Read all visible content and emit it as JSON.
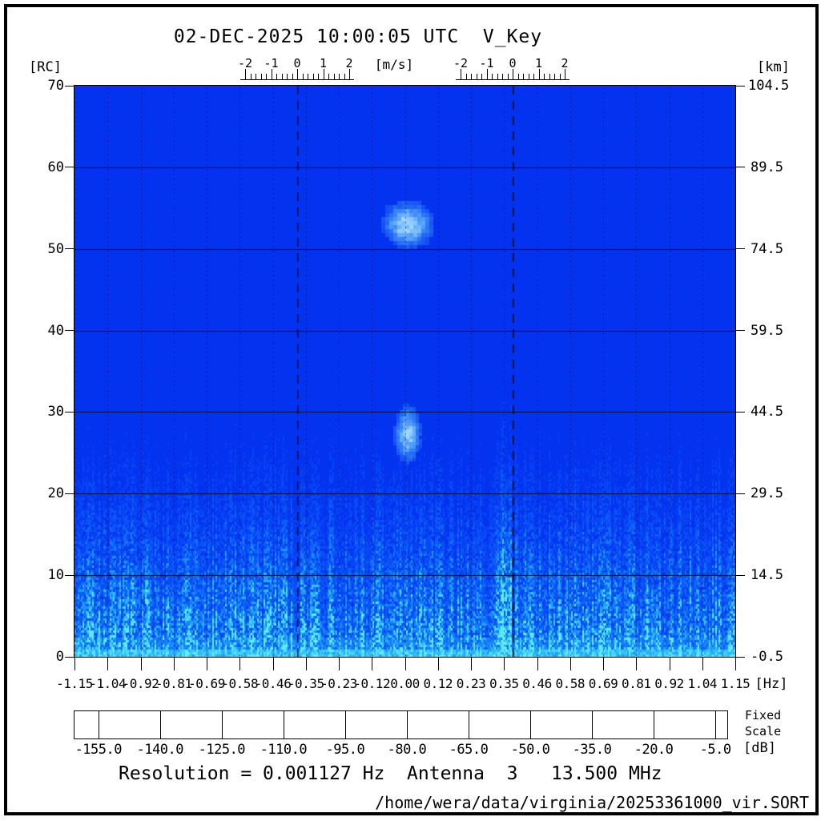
{
  "title": "02-DEC-2025 10:00:05 UTC  V_Key",
  "axes": {
    "left": {
      "unit": "[RC]",
      "tick_labels": [
        "70",
        "60",
        "50",
        "40",
        "30",
        "20",
        "10",
        "0"
      ]
    },
    "right": {
      "unit": "[km]",
      "tick_labels": [
        "104.5",
        "89.5",
        "74.5",
        "59.5",
        "44.5",
        "29.5",
        "14.5",
        "-0.5"
      ]
    },
    "bottom": {
      "unit": "[Hz]",
      "tick_labels": [
        "-1.15",
        "-1.04",
        "-0.92",
        "-0.81",
        "-0.69",
        "-0.58",
        "-0.46",
        "-0.35",
        "-0.23",
        "-0.12",
        "0.00",
        "0.12",
        "0.23",
        "0.35",
        "0.46",
        "0.58",
        "0.69",
        "0.81",
        "0.92",
        "1.04",
        "1.15"
      ]
    },
    "top": {
      "unit": "[m/s]",
      "ruler_tick_labels": [
        "-2",
        "-1",
        "0",
        "1",
        "2"
      ]
    }
  },
  "colorbar": {
    "unit": "[dB]",
    "note_line1": "Fixed",
    "note_line2": "Scale",
    "tick_labels": [
      "-155.0",
      "-140.0",
      "-125.0",
      "-110.0",
      "-95.0",
      "-80.0",
      "-65.0",
      "-50.0",
      "-35.0",
      "-20.0",
      "-5.0"
    ],
    "tick_values": [
      -155,
      -140,
      -125,
      -110,
      -95,
      -80,
      -65,
      -50,
      -35,
      -20,
      -5
    ],
    "colors": [
      "#0726e8",
      "#0033f2",
      "#0040f5",
      "#004df7",
      "#005af9",
      "#0068fb",
      "#0076fd",
      "#0085fe",
      "#0094ff",
      "#00b2ff",
      "#00c4ff",
      "#00d6ff",
      "#00e8ff",
      "#00f8f0",
      "#00f8d8",
      "#00f8b0",
      "#00f884",
      "#00f855",
      "#00f82a",
      "#40f800",
      "#74fa00",
      "#a4fb00",
      "#ccfc00",
      "#ecfd00",
      "#fffa00",
      "#ffe000",
      "#ffc400",
      "#ffa600",
      "#ff8200",
      "#f94400"
    ]
  },
  "footer": {
    "info_line": "Resolution = 0.001127 Hz  Antenna  3   13.500 MHz",
    "file_path": "/home/wera/data/virginia/20253361000_vir.SORT"
  },
  "chart_data": {
    "type": "heatmap",
    "title": "02-DEC-2025 10:00:05 UTC  V_Key",
    "xlabel": "[Hz]",
    "ylabel_left": "[RC]",
    "ylabel_right": "[km]",
    "xlim_hz": [
      -1.15,
      1.15
    ],
    "ylim_range_cells": [
      0,
      70
    ],
    "ylim_km": [
      -0.5,
      104.5
    ],
    "x_ticks_hz": [
      -1.15,
      -1.04,
      -0.92,
      -0.81,
      -0.69,
      -0.58,
      -0.46,
      -0.35,
      -0.23,
      -0.12,
      0.0,
      0.12,
      0.23,
      0.35,
      0.46,
      0.58,
      0.69,
      0.81,
      0.92,
      1.04,
      1.15
    ],
    "y_ticks_range_cells": [
      0,
      10,
      20,
      30,
      40,
      50,
      60,
      70
    ],
    "y_ticks_km": [
      -0.5,
      14.5,
      29.5,
      44.5,
      59.5,
      74.5,
      89.5,
      104.5
    ],
    "grid": "solid horizontal lines every 10 range cells, dotted vertical lines at every frequency tick",
    "color_scale": {
      "unit": "dB",
      "mode": "Fixed Scale",
      "bar_range_db": [
        -160.8,
        -2.1
      ],
      "ticks_db": [
        -155,
        -140,
        -125,
        -110,
        -95,
        -80,
        -65,
        -50,
        -35,
        -20,
        -5
      ],
      "palette": "blue-cyan-green-yellow-orange-red, 30 discrete 5 dB steps"
    },
    "velocity_rulers": {
      "unit": "[m/s]",
      "range": [
        -2,
        2
      ],
      "centers_hz": [
        -0.375,
        0.375
      ],
      "minor_step": 0.2
    },
    "bragg_lines_hz": [
      -0.375,
      0.375
    ],
    "background_level_db": -155,
    "features": [
      {
        "kind": "echo-blob",
        "freq_hz": 0.0,
        "range_cell_center": 53,
        "range_cells": [
          51,
          55
        ],
        "freq_width_hz": 0.12,
        "peak_db": -122
      },
      {
        "kind": "echo-blob",
        "freq_hz": 0.0,
        "range_cell_center": 27,
        "range_cells": [
          25,
          29
        ],
        "freq_width_hz": 0.07,
        "peak_db": -124
      },
      {
        "kind": "noise-floor",
        "range_cells": [
          0,
          30
        ],
        "description": "broadband vertical-streak noise across all frequencies, intensity rising toward range cell 0",
        "level_db_at_rc0": -112,
        "level_db_at_rc30": -150
      },
      {
        "kind": "interference-column",
        "freq_hz": 0.34,
        "range_cells": [
          0,
          20
        ],
        "level_db": -135
      }
    ],
    "annotations": {
      "resolution_hz": 0.001127,
      "antenna": 3,
      "frequency_mhz": 13.5,
      "file": "/home/wera/data/virginia/20253361000_vir.SORT"
    }
  }
}
